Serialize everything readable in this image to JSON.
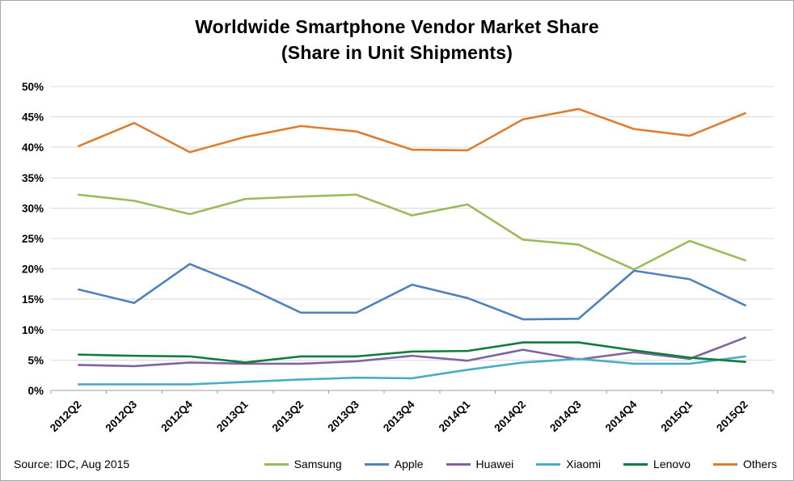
{
  "title": {
    "line1": "Worldwide Smartphone Vendor Market Share",
    "line2": "(Share in Unit Shipments)"
  },
  "source": "Source: IDC, Aug 2015",
  "chart_data": {
    "type": "line",
    "title": "Worldwide Smartphone Vendor Market Share (Share in Unit Shipments)",
    "xlabel": "",
    "ylabel": "",
    "ylim": [
      0,
      50
    ],
    "ytick_step": 5,
    "ytick_format": "percent",
    "grid": "horizontal",
    "legend_position": "bottom",
    "categories": [
      "2012Q2",
      "2012Q3",
      "2012Q4",
      "2013Q1",
      "2013Q2",
      "2013Q3",
      "2013Q4",
      "2014Q1",
      "2014Q2",
      "2014Q3",
      "2014Q4",
      "2015Q1",
      "2015Q2"
    ],
    "series": [
      {
        "name": "Samsung",
        "color": "#9BBB59",
        "values": [
          32.2,
          31.2,
          29.0,
          31.5,
          31.9,
          32.2,
          28.8,
          30.6,
          24.8,
          24.0,
          19.9,
          24.6,
          21.4
        ]
      },
      {
        "name": "Apple",
        "color": "#4F81BD",
        "values": [
          16.6,
          14.4,
          20.8,
          17.1,
          12.8,
          12.8,
          17.4,
          15.2,
          11.7,
          11.8,
          19.7,
          18.3,
          14.0
        ]
      },
      {
        "name": "Huawei",
        "color": "#8064A2",
        "values": [
          4.2,
          4.0,
          4.6,
          4.4,
          4.4,
          4.8,
          5.7,
          4.9,
          6.7,
          5.1,
          6.3,
          5.2,
          8.7
        ]
      },
      {
        "name": "Xiaomi",
        "color": "#4BACC6",
        "values": [
          1.0,
          1.0,
          1.0,
          1.4,
          1.8,
          2.1,
          2.0,
          3.4,
          4.6,
          5.2,
          4.4,
          4.4,
          5.6
        ]
      },
      {
        "name": "Lenovo",
        "color": "#0E7C3B",
        "values": [
          5.9,
          5.7,
          5.6,
          4.6,
          5.6,
          5.6,
          6.4,
          6.5,
          7.9,
          7.9,
          6.6,
          5.4,
          4.7
        ]
      },
      {
        "name": "Others",
        "color": "#DD7E2E",
        "values": [
          40.2,
          44.0,
          39.2,
          41.7,
          43.5,
          42.6,
          39.6,
          39.5,
          44.6,
          46.3,
          43.0,
          41.9,
          45.6
        ]
      }
    ]
  }
}
